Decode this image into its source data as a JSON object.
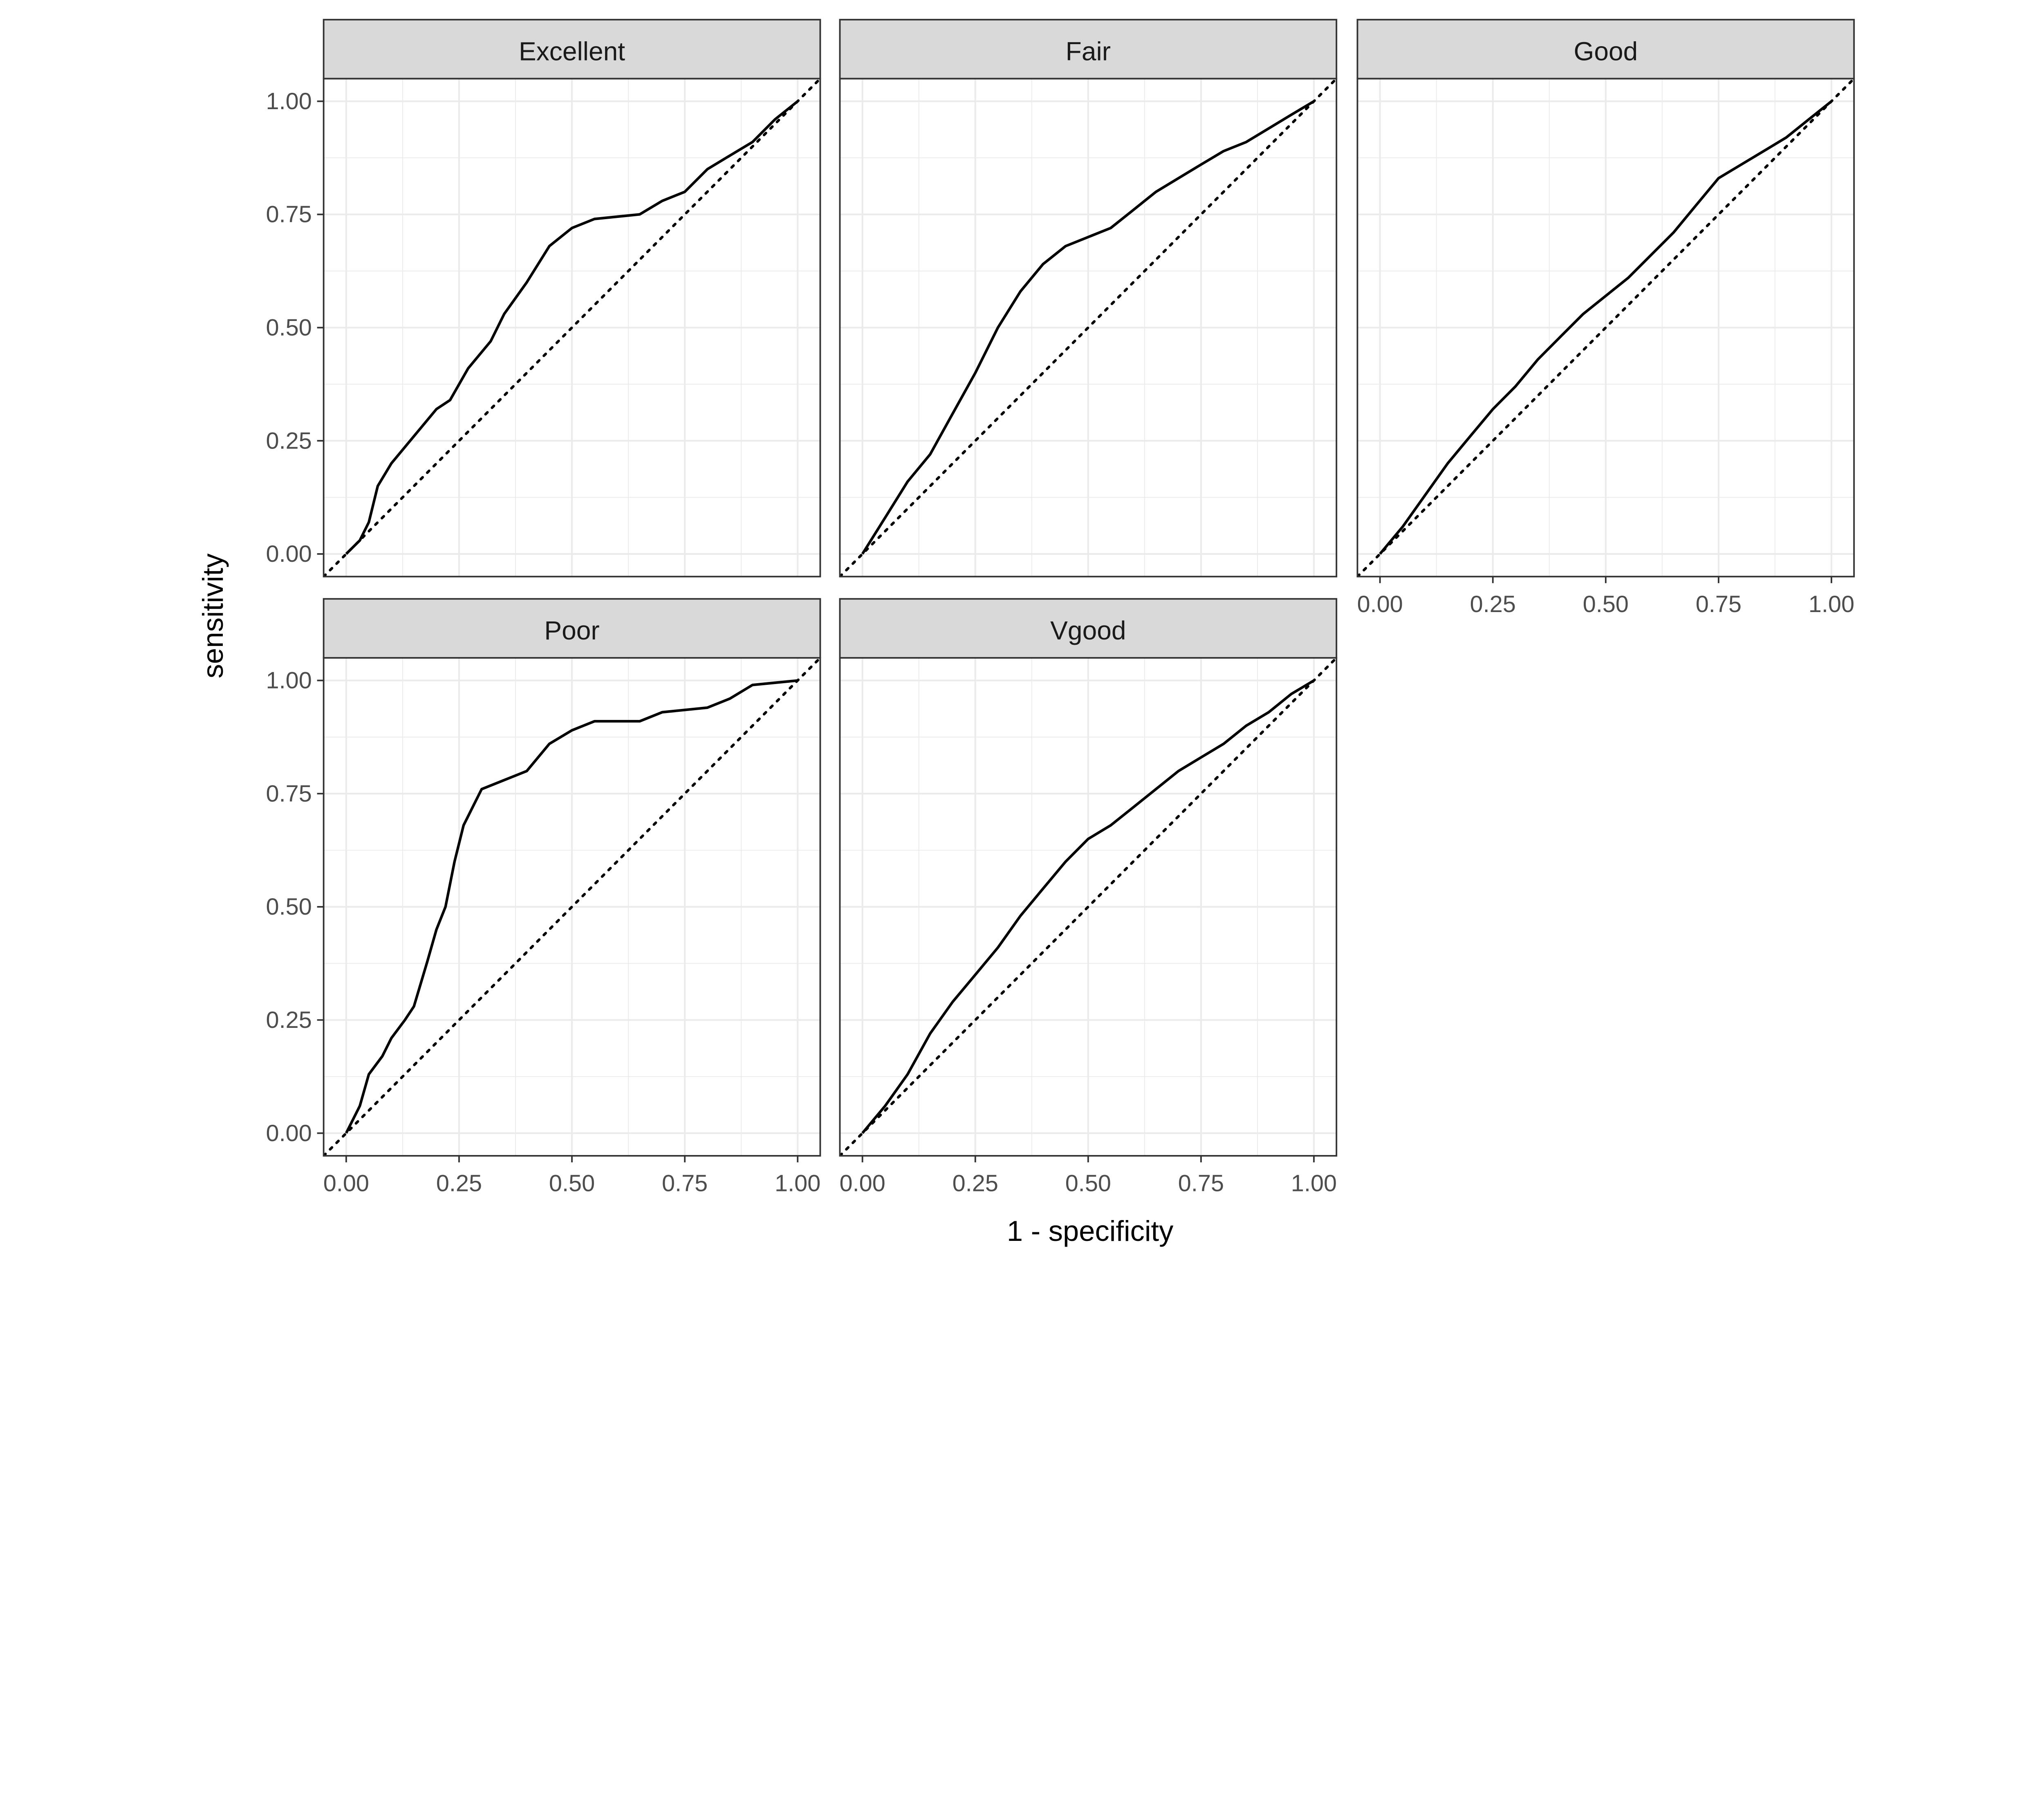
{
  "chart_data": {
    "type": "line",
    "xlabel": "1 - specificity",
    "ylabel": "sensitivity",
    "xlim": [
      0,
      1
    ],
    "ylim": [
      0,
      1
    ],
    "ticks": [
      "0.00",
      "0.25",
      "0.50",
      "0.75",
      "1.00"
    ],
    "tick_values": [
      0,
      0.25,
      0.5,
      0.75,
      1
    ],
    "grid": true,
    "reference_line": "diagonal dotted",
    "colors": {
      "line": "#000000",
      "strip": "#d9d9d9",
      "grid": "#ebebeb",
      "border": "#333333"
    },
    "panels": [
      {
        "name": "Excellent",
        "x": [
          0,
          0.03,
          0.05,
          0.07,
          0.1,
          0.15,
          0.2,
          0.23,
          0.27,
          0.32,
          0.35,
          0.4,
          0.45,
          0.5,
          0.55,
          0.65,
          0.7,
          0.75,
          0.8,
          0.85,
          0.9,
          0.95,
          1
        ],
        "y": [
          0,
          0.03,
          0.07,
          0.15,
          0.2,
          0.26,
          0.32,
          0.34,
          0.41,
          0.47,
          0.53,
          0.6,
          0.68,
          0.72,
          0.74,
          0.75,
          0.78,
          0.8,
          0.85,
          0.88,
          0.91,
          0.96,
          1
        ]
      },
      {
        "name": "Fair",
        "x": [
          0,
          0.05,
          0.1,
          0.15,
          0.2,
          0.25,
          0.3,
          0.35,
          0.4,
          0.45,
          0.5,
          0.55,
          0.6,
          0.65,
          0.7,
          0.75,
          0.8,
          0.85,
          0.9,
          0.95,
          1
        ],
        "y": [
          0,
          0.08,
          0.16,
          0.22,
          0.31,
          0.4,
          0.5,
          0.58,
          0.64,
          0.68,
          0.7,
          0.72,
          0.76,
          0.8,
          0.83,
          0.86,
          0.89,
          0.91,
          0.94,
          0.97,
          1
        ]
      },
      {
        "name": "Good",
        "x": [
          0,
          0.05,
          0.1,
          0.15,
          0.2,
          0.25,
          0.3,
          0.35,
          0.4,
          0.45,
          0.5,
          0.55,
          0.6,
          0.65,
          0.7,
          0.75,
          0.8,
          0.85,
          0.9,
          0.95,
          1
        ],
        "y": [
          0,
          0.06,
          0.13,
          0.2,
          0.26,
          0.32,
          0.37,
          0.43,
          0.48,
          0.53,
          0.57,
          0.61,
          0.66,
          0.71,
          0.77,
          0.83,
          0.86,
          0.89,
          0.92,
          0.96,
          1
        ]
      },
      {
        "name": "Poor",
        "x": [
          0,
          0.03,
          0.05,
          0.08,
          0.1,
          0.13,
          0.15,
          0.18,
          0.2,
          0.22,
          0.24,
          0.26,
          0.28,
          0.3,
          0.35,
          0.4,
          0.45,
          0.5,
          0.55,
          0.65,
          0.7,
          0.8,
          0.85,
          0.9,
          1
        ],
        "y": [
          0,
          0.06,
          0.13,
          0.17,
          0.21,
          0.25,
          0.28,
          0.38,
          0.45,
          0.5,
          0.6,
          0.68,
          0.72,
          0.76,
          0.78,
          0.8,
          0.86,
          0.89,
          0.91,
          0.91,
          0.93,
          0.94,
          0.96,
          0.99,
          1
        ]
      },
      {
        "name": "Vgood",
        "x": [
          0,
          0.05,
          0.1,
          0.15,
          0.2,
          0.25,
          0.3,
          0.35,
          0.4,
          0.45,
          0.5,
          0.55,
          0.6,
          0.65,
          0.7,
          0.75,
          0.8,
          0.85,
          0.9,
          0.95,
          1
        ],
        "y": [
          0,
          0.06,
          0.13,
          0.22,
          0.29,
          0.35,
          0.41,
          0.48,
          0.54,
          0.6,
          0.65,
          0.68,
          0.72,
          0.76,
          0.8,
          0.83,
          0.86,
          0.9,
          0.93,
          0.97,
          1
        ]
      }
    ]
  }
}
